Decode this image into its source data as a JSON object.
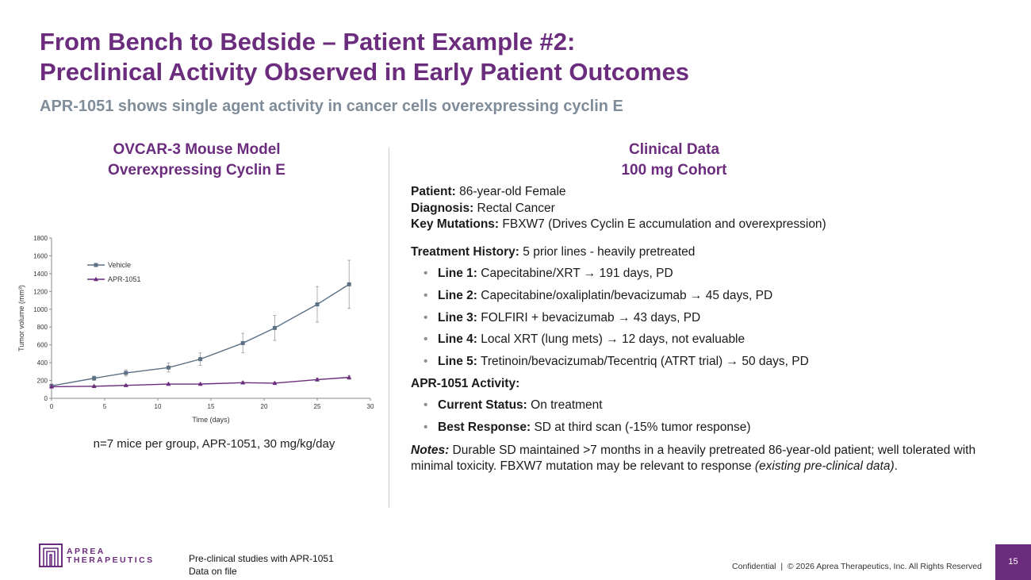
{
  "title": {
    "line1": "From Bench to Bedside – Patient Example #2:",
    "line2": "Preclinical Activity Observed in Early Patient Outcomes"
  },
  "subtitle": "APR-1051 shows single agent activity in cancer cells overexpressing cyclin E",
  "left_heading": {
    "line1": "OVCAR-3 Mouse Model",
    "line2": "Overexpressing Cyclin E"
  },
  "right_heading": {
    "line1": "Clinical Data",
    "line2": "100 mg Cohort"
  },
  "patient": {
    "patient_label": "Patient:",
    "patient_value": "86-year-old Female",
    "diagnosis_label": "Diagnosis:",
    "diagnosis_value": "Rectal Cancer",
    "mutations_label": "Key Mutations:",
    "mutations_value": "FBXW7 (Drives Cyclin E accumulation and overexpression)"
  },
  "treatment_history": {
    "label": "Treatment History:",
    "value": "5 prior lines - heavily pretreated",
    "lines": [
      {
        "label": "Line 1:",
        "text": "Capecitabine/XRT → 191 days, PD"
      },
      {
        "label": "Line 2:",
        "text": "Capecitabine/oxaliplatin/bevacizumab → 45 days, PD"
      },
      {
        "label": "Line 3:",
        "text": "FOLFIRI + bevacizumab → 43 days, PD"
      },
      {
        "label": "Line 4:",
        "text": "Local XRT (lung mets) → 12 days, not evaluable"
      },
      {
        "label": "Line 5:",
        "text": "Tretinoin/bevacizumab/Tecentriq (ATRT trial) → 50 days, PD"
      }
    ]
  },
  "activity": {
    "label": "APR-1051 Activity:",
    "items": [
      {
        "label": "Current Status:",
        "text": "On treatment"
      },
      {
        "label": "Best Response:",
        "text": "SD at third scan (-15% tumor response)"
      }
    ]
  },
  "notes": {
    "label": "Notes:",
    "text": "Durable SD maintained >7 months in a heavily pretreated 86-year-old patient; well tolerated with minimal toxicity. FBXW7 mutation may be relevant to response",
    "italic_tail": "(existing pre-clinical data)",
    "end": "."
  },
  "caption": "n=7 mice per group, APR-1051, 30 mg/kg/day",
  "logo": {
    "line1": "APREA",
    "line2": "THERAPEUTICS"
  },
  "footnote": {
    "line1": "Pre-clinical studies with APR-1051",
    "line2": "Data on file"
  },
  "confidential": "Confidential  |  © 2026 Aprea Therapeutics, Inc. All Rights Reserved",
  "page_number": "15",
  "colors": {
    "brand": "#6b2c7d",
    "vehicle": "#5d7186",
    "apr": "#6b2c7d"
  },
  "chart_data": {
    "type": "line",
    "xlabel": "Time (days)",
    "ylabel": "Tumor volume (mm³)",
    "xlim": [
      0,
      30
    ],
    "ylim": [
      0,
      1800
    ],
    "xticks": [
      0,
      5,
      10,
      15,
      20,
      25,
      30
    ],
    "yticks": [
      0,
      200,
      400,
      600,
      800,
      1000,
      1200,
      1400,
      1600,
      1800
    ],
    "legend_position": "top-left",
    "grid": false,
    "series": [
      {
        "name": "Vehicle",
        "marker": "square",
        "x": [
          0,
          4,
          7,
          11,
          14,
          18,
          21,
          25,
          28
        ],
        "y": [
          140,
          225,
          285,
          345,
          440,
          620,
          790,
          1055,
          1280
        ],
        "err": [
          10,
          25,
          35,
          50,
          70,
          110,
          140,
          200,
          270
        ]
      },
      {
        "name": "APR-1051",
        "marker": "triangle",
        "x": [
          0,
          4,
          7,
          11,
          14,
          18,
          21,
          25,
          28
        ],
        "y": [
          130,
          135,
          145,
          160,
          160,
          175,
          170,
          210,
          235
        ],
        "err": [
          8,
          10,
          10,
          12,
          12,
          15,
          15,
          18,
          22
        ]
      }
    ]
  }
}
